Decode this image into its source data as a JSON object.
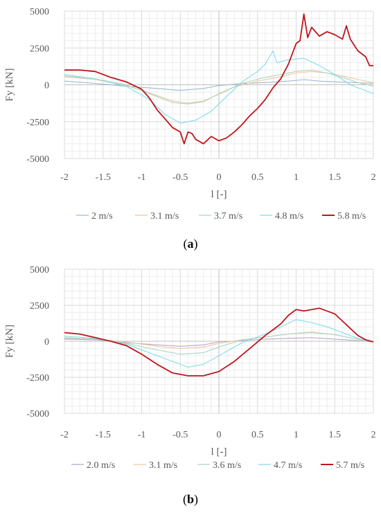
{
  "chart_data": [
    {
      "type": "line",
      "caption_open": "(",
      "caption_letter": "a",
      "caption_close": ")",
      "xlabel": "l [-]",
      "ylabel": "Fy [kN]",
      "xlim": [
        -2,
        2
      ],
      "ylim": [
        -5000,
        5000
      ],
      "xticks": [
        -2,
        -1.5,
        -1,
        -0.5,
        0,
        0.5,
        1,
        1.5,
        2
      ],
      "yticks": [
        5000,
        2500,
        0,
        -2500,
        -5000
      ],
      "grid": true,
      "legend_position": "bottom",
      "series": [
        {
          "name": "2 m/s",
          "color": "#9bb7d4",
          "points": [
            [
              -2,
              250
            ],
            [
              -1.6,
              100
            ],
            [
              -1.2,
              -100
            ],
            [
              -0.8,
              -250
            ],
            [
              -0.5,
              -380
            ],
            [
              -0.2,
              -250
            ],
            [
              0,
              -50
            ],
            [
              0.3,
              80
            ],
            [
              0.6,
              150
            ],
            [
              0.9,
              250
            ],
            [
              1.1,
              350
            ],
            [
              1.3,
              250
            ],
            [
              1.6,
              180
            ],
            [
              2,
              100
            ]
          ]
        },
        {
          "name": "3.1 m/s",
          "color": "#f0c7a0",
          "points": [
            [
              -2,
              550
            ],
            [
              -1.6,
              350
            ],
            [
              -1.2,
              -50
            ],
            [
              -0.9,
              -550
            ],
            [
              -0.6,
              -1100
            ],
            [
              -0.4,
              -1250
            ],
            [
              -0.2,
              -1100
            ],
            [
              0,
              -650
            ],
            [
              0.2,
              -150
            ],
            [
              0.5,
              250
            ],
            [
              0.8,
              550
            ],
            [
              1.0,
              800
            ],
            [
              1.2,
              900
            ],
            [
              1.4,
              800
            ],
            [
              1.6,
              600
            ],
            [
              1.8,
              350
            ],
            [
              2,
              150
            ]
          ]
        },
        {
          "name": "3.7 m/s",
          "color": "#a8d8c0",
          "points": [
            [
              -2,
              600
            ],
            [
              -1.6,
              400
            ],
            [
              -1.2,
              0
            ],
            [
              -0.9,
              -600
            ],
            [
              -0.6,
              -1200
            ],
            [
              -0.4,
              -1300
            ],
            [
              -0.2,
              -1150
            ],
            [
              0,
              -600
            ],
            [
              0.3,
              100
            ],
            [
              0.6,
              500
            ],
            [
              0.8,
              700
            ],
            [
              1.0,
              900
            ],
            [
              1.2,
              1000
            ],
            [
              1.4,
              800
            ],
            [
              1.6,
              500
            ],
            [
              1.8,
              150
            ],
            [
              2,
              -100
            ]
          ]
        },
        {
          "name": "4.8 m/s",
          "color": "#7fdcec",
          "points": [
            [
              -2,
              700
            ],
            [
              -1.6,
              400
            ],
            [
              -1.2,
              -100
            ],
            [
              -0.9,
              -1000
            ],
            [
              -0.7,
              -2000
            ],
            [
              -0.5,
              -2600
            ],
            [
              -0.3,
              -2400
            ],
            [
              -0.1,
              -1800
            ],
            [
              0.1,
              -800
            ],
            [
              0.3,
              200
            ],
            [
              0.5,
              900
            ],
            [
              0.6,
              1400
            ],
            [
              0.7,
              2300
            ],
            [
              0.75,
              1500
            ],
            [
              0.9,
              1700
            ],
            [
              1.1,
              1800
            ],
            [
              1.3,
              1300
            ],
            [
              1.5,
              700
            ],
            [
              1.7,
              0
            ],
            [
              1.9,
              -400
            ],
            [
              2,
              -600
            ]
          ]
        },
        {
          "name": "5.8 m/s",
          "color": "#c0141a",
          "points": [
            [
              -2,
              1000
            ],
            [
              -1.8,
              1000
            ],
            [
              -1.6,
              900
            ],
            [
              -1.4,
              500
            ],
            [
              -1.2,
              200
            ],
            [
              -1.0,
              -300
            ],
            [
              -0.9,
              -900
            ],
            [
              -0.8,
              -1700
            ],
            [
              -0.7,
              -2300
            ],
            [
              -0.6,
              -2900
            ],
            [
              -0.5,
              -3200
            ],
            [
              -0.45,
              -4000
            ],
            [
              -0.4,
              -3200
            ],
            [
              -0.35,
              -3300
            ],
            [
              -0.3,
              -3700
            ],
            [
              -0.2,
              -4000
            ],
            [
              -0.1,
              -3500
            ],
            [
              0,
              -3800
            ],
            [
              0.1,
              -3600
            ],
            [
              0.2,
              -3200
            ],
            [
              0.3,
              -2700
            ],
            [
              0.4,
              -2100
            ],
            [
              0.5,
              -1600
            ],
            [
              0.6,
              -1000
            ],
            [
              0.7,
              -200
            ],
            [
              0.8,
              400
            ],
            [
              0.9,
              1400
            ],
            [
              1.0,
              2800
            ],
            [
              1.05,
              3000
            ],
            [
              1.1,
              4800
            ],
            [
              1.15,
              3200
            ],
            [
              1.2,
              3900
            ],
            [
              1.3,
              3300
            ],
            [
              1.4,
              3600
            ],
            [
              1.5,
              3400
            ],
            [
              1.6,
              3100
            ],
            [
              1.65,
              4000
            ],
            [
              1.7,
              3100
            ],
            [
              1.8,
              2300
            ],
            [
              1.9,
              1900
            ],
            [
              1.95,
              1300
            ],
            [
              2,
              1300
            ]
          ]
        }
      ]
    },
    {
      "type": "line",
      "caption_open": "(",
      "caption_letter": "b",
      "caption_close": ")",
      "xlabel": "l [-]",
      "ylabel": "Fy [kN]",
      "xlim": [
        -2,
        2
      ],
      "ylim": [
        -5000,
        5000
      ],
      "xticks": [
        -2,
        -1.5,
        -1,
        -0.5,
        0,
        0.5,
        1,
        1.5,
        2
      ],
      "yticks": [
        5000,
        2500,
        0,
        -2500,
        -5000
      ],
      "grid": true,
      "legend_position": "bottom",
      "series": [
        {
          "name": "2.0 m/s",
          "color": "#b8a8c8",
          "points": [
            [
              -2,
              150
            ],
            [
              -1.6,
              100
            ],
            [
              -1.2,
              -100
            ],
            [
              -0.8,
              -250
            ],
            [
              -0.5,
              -350
            ],
            [
              -0.2,
              -250
            ],
            [
              0,
              -50
            ],
            [
              0.3,
              50
            ],
            [
              0.6,
              150
            ],
            [
              0.9,
              200
            ],
            [
              1.2,
              250
            ],
            [
              1.5,
              150
            ],
            [
              1.8,
              50
            ],
            [
              2,
              -50
            ]
          ]
        },
        {
          "name": "3.1 m/s",
          "color": "#f0c7a0",
          "points": [
            [
              -2,
              200
            ],
            [
              -1.6,
              150
            ],
            [
              -1.2,
              -50
            ],
            [
              -0.8,
              -350
            ],
            [
              -0.5,
              -500
            ],
            [
              -0.2,
              -400
            ],
            [
              0,
              -150
            ],
            [
              0.3,
              100
            ],
            [
              0.6,
              300
            ],
            [
              0.9,
              500
            ],
            [
              1.2,
              650
            ],
            [
              1.5,
              450
            ],
            [
              1.8,
              150
            ],
            [
              2,
              -50
            ]
          ]
        },
        {
          "name": "3.6 m/s",
          "color": "#a8d8c0",
          "points": [
            [
              -2,
              250
            ],
            [
              -1.6,
              150
            ],
            [
              -1.2,
              -150
            ],
            [
              -0.8,
              -600
            ],
            [
              -0.5,
              -900
            ],
            [
              -0.2,
              -800
            ],
            [
              0,
              -400
            ],
            [
              0.3,
              100
            ],
            [
              0.6,
              300
            ],
            [
              0.9,
              500
            ],
            [
              1.2,
              600
            ],
            [
              1.5,
              450
            ],
            [
              1.8,
              150
            ],
            [
              2,
              -50
            ]
          ]
        },
        {
          "name": "4.7 m/s",
          "color": "#7fdcec",
          "points": [
            [
              -2,
              350
            ],
            [
              -1.6,
              200
            ],
            [
              -1.2,
              -200
            ],
            [
              -0.9,
              -800
            ],
            [
              -0.6,
              -1400
            ],
            [
              -0.4,
              -1800
            ],
            [
              -0.2,
              -1600
            ],
            [
              0,
              -1000
            ],
            [
              0.3,
              -100
            ],
            [
              0.6,
              500
            ],
            [
              0.8,
              1000
            ],
            [
              1.0,
              1500
            ],
            [
              1.2,
              1300
            ],
            [
              1.4,
              1000
            ],
            [
              1.6,
              600
            ],
            [
              1.8,
              200
            ],
            [
              2,
              -50
            ]
          ]
        },
        {
          "name": "5.7 m/s",
          "color": "#c0141a",
          "points": [
            [
              -2,
              600
            ],
            [
              -1.8,
              500
            ],
            [
              -1.6,
              250
            ],
            [
              -1.4,
              0
            ],
            [
              -1.2,
              -300
            ],
            [
              -1.0,
              -900
            ],
            [
              -0.8,
              -1600
            ],
            [
              -0.6,
              -2200
            ],
            [
              -0.4,
              -2400
            ],
            [
              -0.2,
              -2400
            ],
            [
              0,
              -2100
            ],
            [
              0.2,
              -1400
            ],
            [
              0.4,
              -500
            ],
            [
              0.6,
              400
            ],
            [
              0.8,
              1200
            ],
            [
              0.9,
              1800
            ],
            [
              1.0,
              2200
            ],
            [
              1.1,
              2100
            ],
            [
              1.2,
              2200
            ],
            [
              1.3,
              2300
            ],
            [
              1.4,
              2100
            ],
            [
              1.5,
              1900
            ],
            [
              1.6,
              1400
            ],
            [
              1.7,
              900
            ],
            [
              1.8,
              400
            ],
            [
              1.9,
              100
            ],
            [
              2,
              -50
            ]
          ]
        }
      ]
    }
  ]
}
